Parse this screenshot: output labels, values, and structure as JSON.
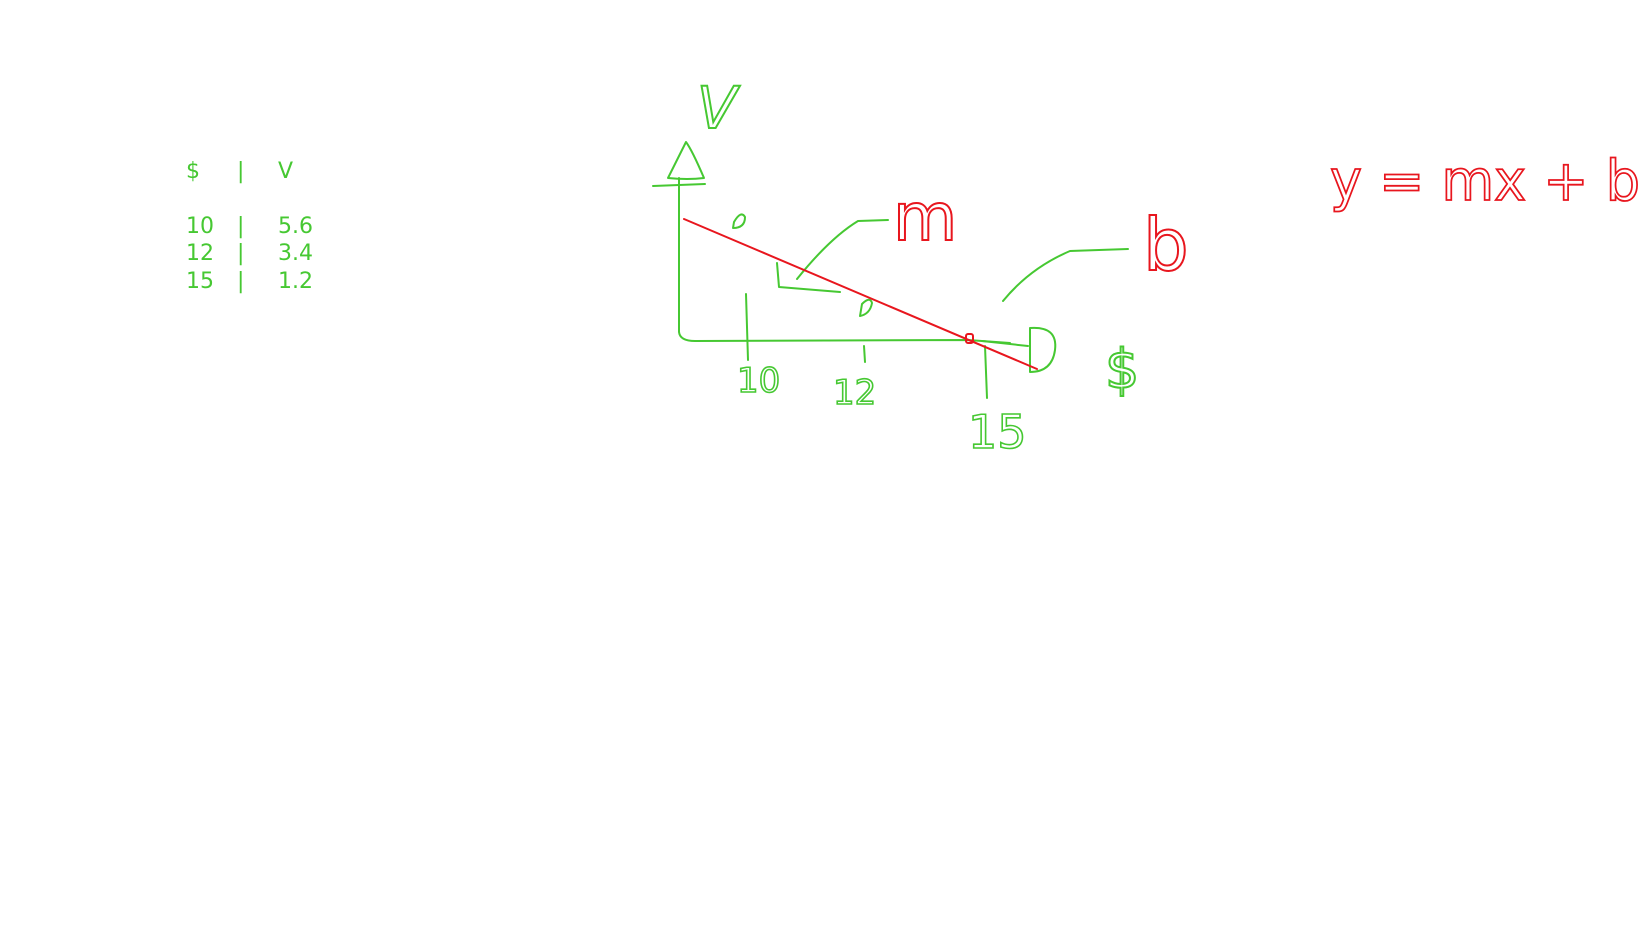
{
  "table": {
    "header": [
      "$",
      "|",
      "V"
    ],
    "rows": [
      [
        "10",
        "|",
        "5.6"
      ],
      [
        "12",
        "|",
        "3.4"
      ],
      [
        "15",
        "|",
        "1.2"
      ]
    ]
  },
  "sketch": {
    "y_axis_label": "V",
    "x_axis_label": "$",
    "x_ticks": [
      "10",
      "12",
      "15"
    ],
    "slope_label": "m",
    "intercept_label": "b",
    "equation": "y = mx + b"
  },
  "colors": {
    "green": "#46c832",
    "red": "#e8161e"
  }
}
